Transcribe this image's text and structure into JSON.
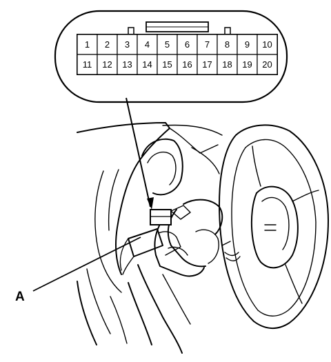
{
  "connector": {
    "row1": [
      "1",
      "2",
      "3",
      "4",
      "5",
      "6",
      "7",
      "8",
      "9",
      "10"
    ],
    "row2": [
      "11",
      "12",
      "13",
      "14",
      "15",
      "16",
      "17",
      "18",
      "19",
      "20"
    ]
  },
  "callout_label": "A"
}
